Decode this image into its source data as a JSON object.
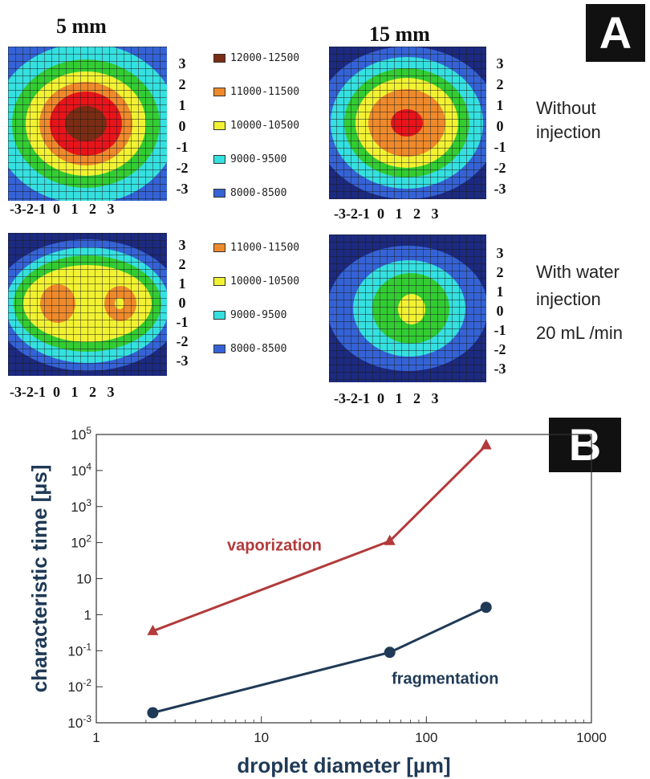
{
  "panel_a": {
    "tag": "A",
    "col_left_title": "5 mm",
    "col_right_title": "15 mm",
    "row1_note": [
      "Without",
      "injection"
    ],
    "row2_note": [
      "With water",
      "injection",
      "20 mL /min"
    ],
    "axis_ticks": [
      "3",
      "2",
      "1",
      "0",
      "-1",
      "-2",
      "-3"
    ],
    "x_ticks": "-3-2-1  0   1   2   3",
    "legend_row1": [
      {
        "label": "12000-12500",
        "color": "#7a2d14"
      },
      {
        "label": "11000-11500",
        "color": "#ef8a2c"
      },
      {
        "label": "10000-10500",
        "color": "#f2f232"
      },
      {
        "label": "9000-9500",
        "color": "#35e0e0"
      },
      {
        "label": "8000-8500",
        "color": "#3563d6"
      }
    ],
    "legend_row2": [
      {
        "label": "11000-11500",
        "color": "#ef8a2c"
      },
      {
        "label": "10000-10500",
        "color": "#f2f232"
      },
      {
        "label": "9000-9500",
        "color": "#35e0e0"
      },
      {
        "label": "8000-8500",
        "color": "#3563d6"
      }
    ]
  },
  "panel_b": {
    "tag": "B"
  },
  "chart_data": {
    "type": "line",
    "xlabel": "droplet diameter [µm]",
    "ylabel": "characteristic time [µs]",
    "xscale": "log",
    "yscale": "log",
    "xlim": [
      1,
      1000
    ],
    "ylim": [
      0.001,
      100000
    ],
    "x_tick_labels": [
      "1",
      "10",
      "100",
      "1000"
    ],
    "y_tick_labels": [
      "10-3",
      "10-2",
      "10-1",
      "1",
      "10",
      "102",
      "103",
      "104",
      "105"
    ],
    "series": [
      {
        "name": "vaporization",
        "color": "#b23a3a",
        "marker": "triangle",
        "x": [
          2.2,
          60,
          230
        ],
        "y": [
          0.35,
          110,
          50000
        ]
      },
      {
        "name": "fragmentation",
        "color": "#1f3a56",
        "marker": "circle",
        "x": [
          2.2,
          60,
          230
        ],
        "y": [
          0.0019,
          0.09,
          1.6
        ]
      }
    ]
  }
}
